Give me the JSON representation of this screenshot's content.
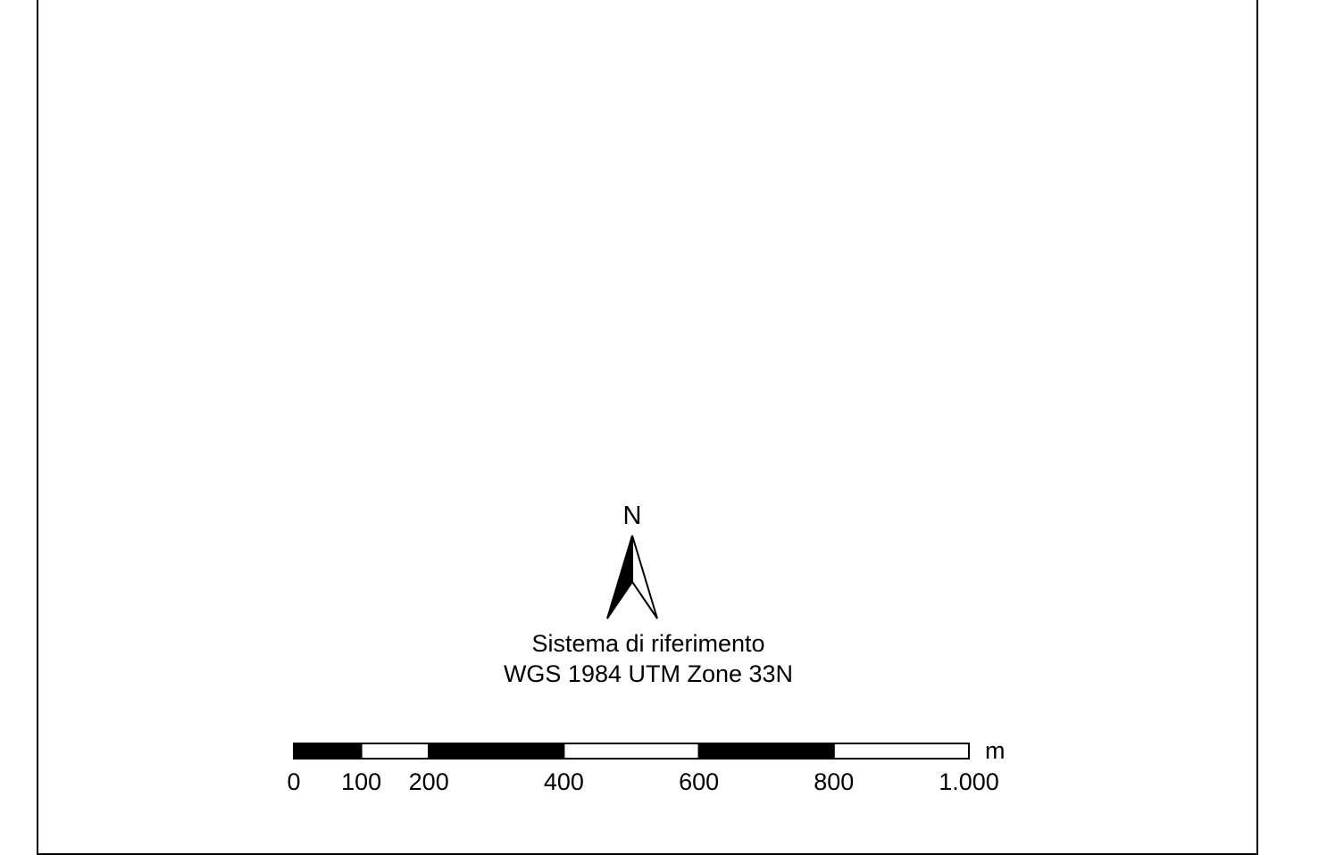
{
  "map": {
    "north_label": "N",
    "north_arrow_icon": "north-arrow-icon",
    "crs": {
      "line1": "Sistema di riferimento",
      "line2": "WGS 1984 UTM Zone 33N"
    },
    "scalebar": {
      "unit": "m",
      "max_value": 1000,
      "segments": [
        {
          "from": 0,
          "to": 100,
          "fill": "#000000"
        },
        {
          "from": 100,
          "to": 200,
          "fill": "#ffffff"
        },
        {
          "from": 200,
          "to": 400,
          "fill": "#000000"
        },
        {
          "from": 400,
          "to": 600,
          "fill": "#ffffff"
        },
        {
          "from": 600,
          "to": 800,
          "fill": "#000000"
        },
        {
          "from": 800,
          "to": 1000,
          "fill": "#ffffff"
        }
      ],
      "ticks": [
        {
          "value": 0,
          "label": "0"
        },
        {
          "value": 100,
          "label": "100"
        },
        {
          "value": 200,
          "label": "200"
        },
        {
          "value": 400,
          "label": "400"
        },
        {
          "value": 600,
          "label": "600"
        },
        {
          "value": 800,
          "label": "800"
        },
        {
          "value": 1000,
          "label": "1.000"
        }
      ]
    },
    "colors": {
      "ink": "#000000",
      "paper": "#ffffff"
    }
  }
}
